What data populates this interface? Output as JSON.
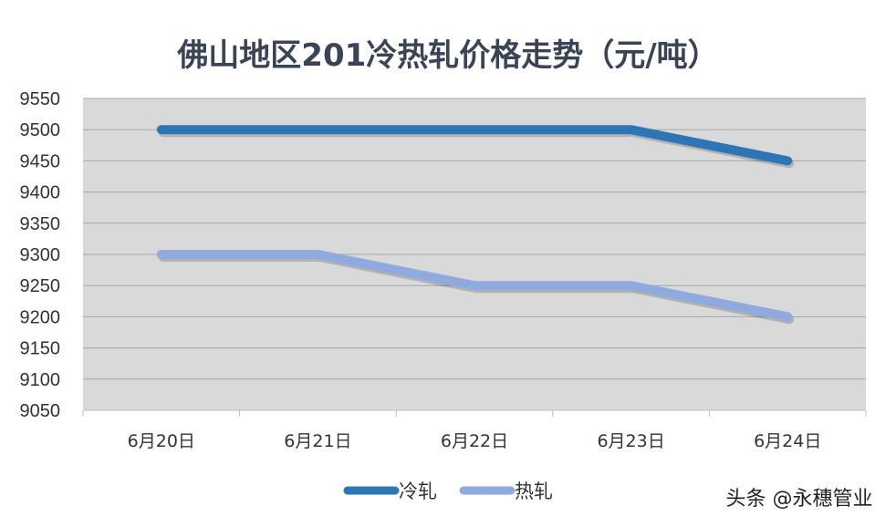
{
  "chart_data": {
    "type": "line",
    "title": "佛山地区201冷热轧价格走势（元/吨）",
    "categories": [
      "6月20日",
      "6月21日",
      "6月22日",
      "6月23日",
      "6月24日"
    ],
    "series": [
      {
        "name": "冷轧",
        "values": [
          9500,
          9500,
          9500,
          9500,
          9450
        ],
        "color": "#2e75b6"
      },
      {
        "name": "热轧",
        "values": [
          9300,
          9300,
          9250,
          9250,
          9200
        ],
        "color": "#8faadc"
      }
    ],
    "ylim": [
      9050,
      9550
    ],
    "ytick_step": 50,
    "xlabel": "",
    "ylabel": "",
    "grid": true,
    "plot_background": "#d9d9d9",
    "legend_position": "bottom"
  },
  "watermark": "头条 @永穗管业"
}
